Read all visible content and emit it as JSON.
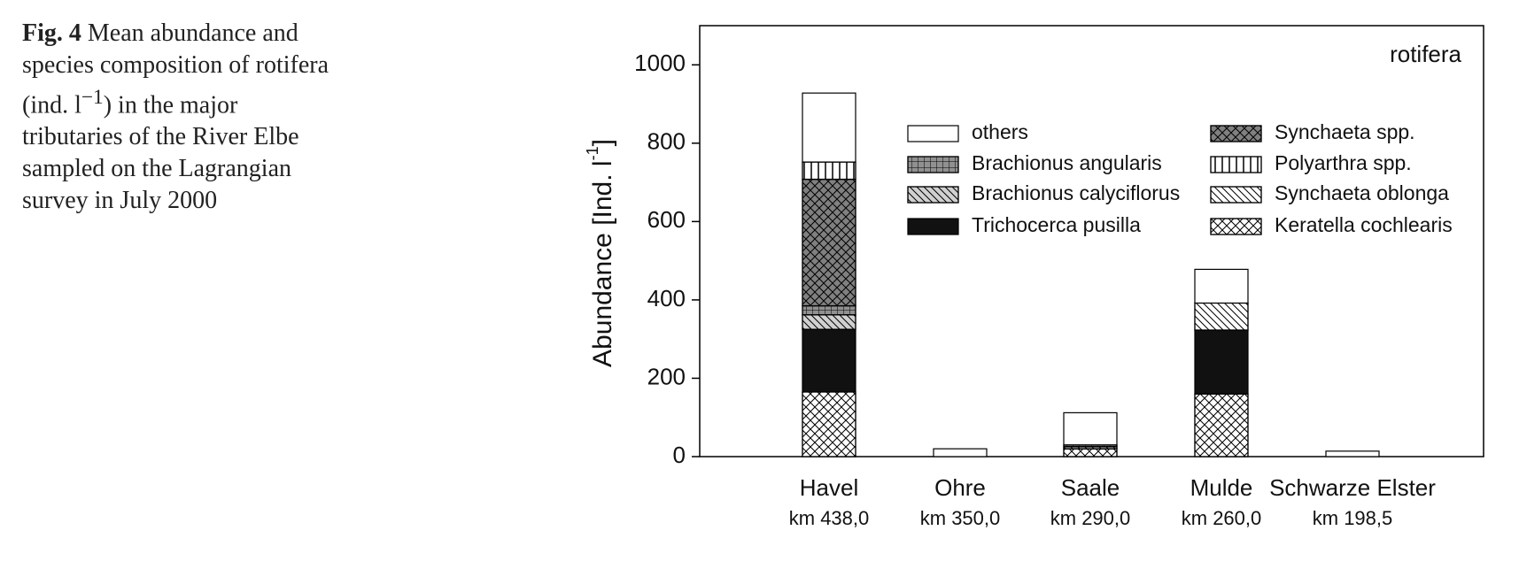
{
  "caption": {
    "label": "Fig. 4",
    "text": "Mean abundance and species composition of rotifera (ind. l",
    "sup": "−1",
    "rest": ") in the major tributaries of the River Elbe sampled on the Lagrangian survey in July 2000"
  },
  "chart_data": {
    "type": "stacked_bar",
    "panel_label": "rotifera",
    "ylabel": "Abundance [Ind. l",
    "ylabel_sup": "-1",
    "ylabel_end": "]",
    "categories": [
      "Havel",
      "Ohre",
      "Saale",
      "Mulde",
      "Schwarze Elster"
    ],
    "category_sublabels": [
      "km 438,0",
      "km 350,0",
      "km 290,0",
      "km 260,0",
      "km 198,5"
    ],
    "ylim": [
      0,
      1100
    ],
    "yticks": [
      0,
      200,
      400,
      600,
      800,
      1000
    ],
    "series": [
      {
        "name": "Keratella cochlearis",
        "color": "#ffffff",
        "pattern": "crosshatch",
        "values": [
          165,
          0,
          20,
          160,
          0
        ]
      },
      {
        "name": "Trichocerca pusilla",
        "color": "#111111",
        "pattern": "none",
        "values": [
          160,
          0,
          0,
          163,
          0
        ]
      },
      {
        "name": "Brachionus calyciflorus",
        "color": "#d0d0d0",
        "pattern": "diagonal",
        "values": [
          37,
          0,
          5,
          0,
          0
        ]
      },
      {
        "name": "Brachionus angularis",
        "color": "#909090",
        "pattern": "grid",
        "values": [
          23,
          0,
          5,
          0,
          0
        ]
      },
      {
        "name": "Synchaeta spp.",
        "color": "#808080",
        "pattern": "crosshatch",
        "values": [
          323,
          0,
          0,
          0,
          0
        ]
      },
      {
        "name": "Polyarthra spp.",
        "color": "#ffffff",
        "pattern": "vertical",
        "values": [
          44,
          0,
          0,
          0,
          0
        ]
      },
      {
        "name": "Synchaeta oblonga",
        "color": "#ffffff",
        "pattern": "diagonal",
        "values": [
          0,
          0,
          0,
          69,
          0
        ]
      },
      {
        "name": "others",
        "color": "#ffffff",
        "pattern": "none",
        "values": [
          176,
          20,
          82,
          86,
          14
        ]
      }
    ]
  }
}
